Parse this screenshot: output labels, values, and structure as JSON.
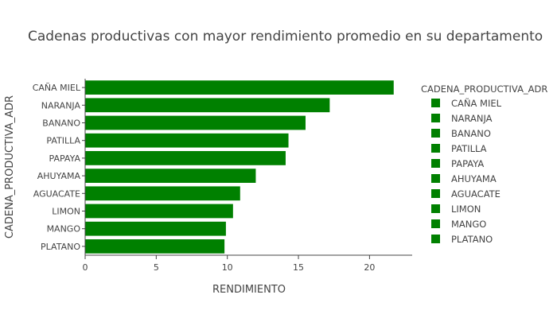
{
  "chart_data": {
    "type": "bar",
    "orientation": "horizontal",
    "title": "Cadenas productivas con mayor rendimiento promedio en su departamento",
    "xlabel": "RENDIMIENTO",
    "ylabel": "CADENA_PRODUCTIVA_ADR",
    "xlim": [
      0,
      23
    ],
    "xticks": [
      "0",
      "5",
      "10",
      "15",
      "20"
    ],
    "grid": false,
    "bar_color": "#008000",
    "categories": [
      "CAÑA MIEL",
      "NARANJA",
      "BANANO",
      "PATILLA",
      "PAPAYA",
      "AHUYAMA",
      "AGUACATE",
      "LIMON",
      "MANGO",
      "PLATANO"
    ],
    "values": [
      21.7,
      17.2,
      15.5,
      14.3,
      14.1,
      12.0,
      10.9,
      10.4,
      9.9,
      9.8
    ],
    "legend": {
      "title": "CADENA_PRODUCTIVA_ADR",
      "position": "right",
      "items": [
        "CAÑA MIEL",
        "NARANJA",
        "BANANO",
        "PATILLA",
        "PAPAYA",
        "AHUYAMA",
        "AGUACATE",
        "LIMON",
        "MANGO",
        "PLATANO"
      ]
    }
  }
}
